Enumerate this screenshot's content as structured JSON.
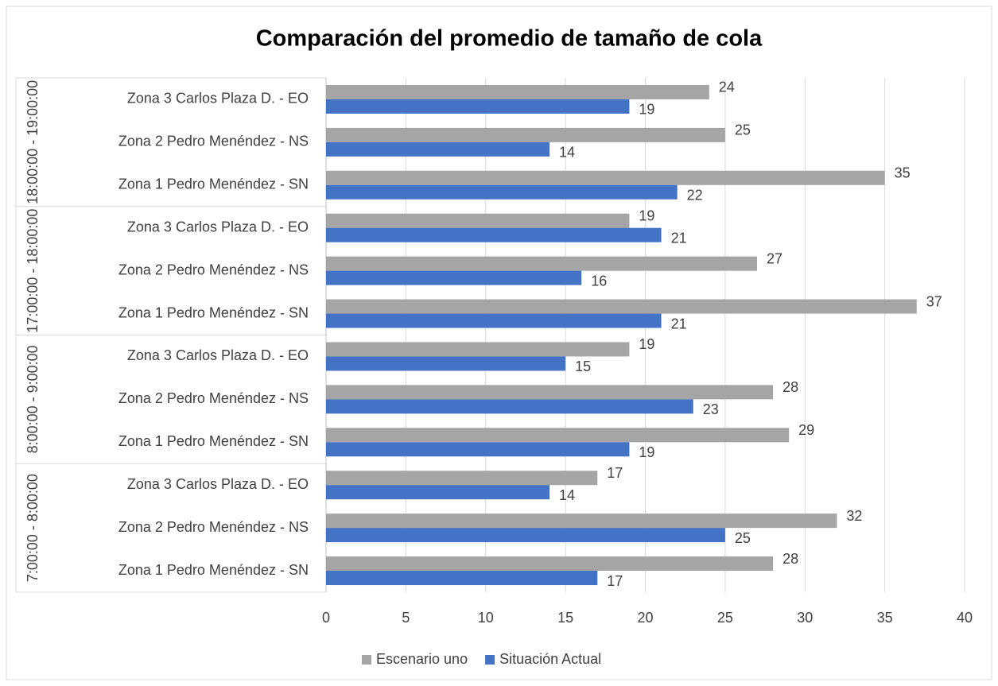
{
  "chart_data": {
    "type": "bar",
    "orientation": "horizontal",
    "title": "Comparación del promedio de tamaño de cola",
    "category_groups": [
      "7:00:00 - 8:00:00",
      "8:00:00 - 9:00:00",
      "17:00:00 - 18:00:00",
      "18:00:00 - 19:00:00"
    ],
    "categories": [
      "Zona 1 Pedro Menéndez - SN",
      "Zona 2 Pedro Menéndez - NS",
      "Zona 3 Carlos Plaza D. - EO",
      "Zona 1 Pedro Menéndez - SN",
      "Zona 2 Pedro Menéndez - NS",
      "Zona 3 Carlos Plaza D. - EO",
      "Zona 1 Pedro Menéndez - SN",
      "Zona 2 Pedro Menéndez - NS",
      "Zona 3 Carlos Plaza D. - EO",
      "Zona 1 Pedro Menéndez - SN",
      "Zona 2 Pedro Menéndez - NS",
      "Zona 3 Carlos Plaza D. - EO"
    ],
    "series": [
      {
        "name": "Escenario uno",
        "color": "#a5a5a5",
        "values": [
          28,
          32,
          17,
          29,
          28,
          19,
          37,
          27,
          19,
          35,
          25,
          24
        ]
      },
      {
        "name": "Situación Actual",
        "color": "#4472c4",
        "values": [
          17,
          25,
          14,
          19,
          23,
          15,
          21,
          16,
          21,
          22,
          14,
          19
        ]
      }
    ],
    "xlim": [
      0,
      40
    ],
    "xticks": [
      0,
      5,
      10,
      15,
      20,
      25,
      30,
      35,
      40
    ],
    "grid": true,
    "legend": "bottom"
  }
}
